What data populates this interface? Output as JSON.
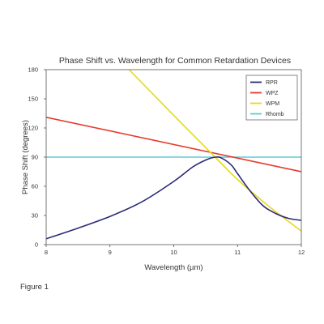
{
  "chart_data": {
    "type": "line",
    "title": "Phase Shift vs. Wavelength for Common Retardation Devices",
    "xlabel": "Wavelength (µm)",
    "ylabel": "Phase Shift (degrees)",
    "xlim": [
      8,
      12
    ],
    "ylim": [
      0,
      180
    ],
    "x_ticks": [
      8,
      9,
      10,
      11,
      12
    ],
    "y_ticks": [
      0,
      30,
      60,
      90,
      120,
      150,
      180
    ],
    "grid": false,
    "legend_position": "top-right",
    "series": [
      {
        "name": "RPR",
        "color": "#2b2a78",
        "x": [
          8.0,
          8.5,
          9.0,
          9.5,
          10.0,
          10.3,
          10.5,
          10.65,
          10.75,
          10.9,
          11.0,
          11.2,
          11.4,
          11.6,
          11.8,
          12.0
        ],
        "y": [
          6,
          17,
          29,
          44,
          65,
          80,
          87,
          90,
          89,
          82,
          73,
          55,
          40,
          32,
          27,
          25
        ]
      },
      {
        "name": "WPZ",
        "color": "#e53b2c",
        "x": [
          8.0,
          12.0
        ],
        "y": [
          131,
          75
        ]
      },
      {
        "name": "WPM",
        "color": "#e6d81e",
        "x": [
          9.3,
          10.0,
          10.65,
          11.0,
          11.5,
          12.0
        ],
        "y": [
          180,
          133,
          90,
          67,
          39,
          14
        ]
      },
      {
        "name": "Rhomb",
        "color": "#5ccbd6",
        "x": [
          8.0,
          12.0
        ],
        "y": [
          90,
          90
        ]
      }
    ]
  },
  "caption": "Figure 1"
}
